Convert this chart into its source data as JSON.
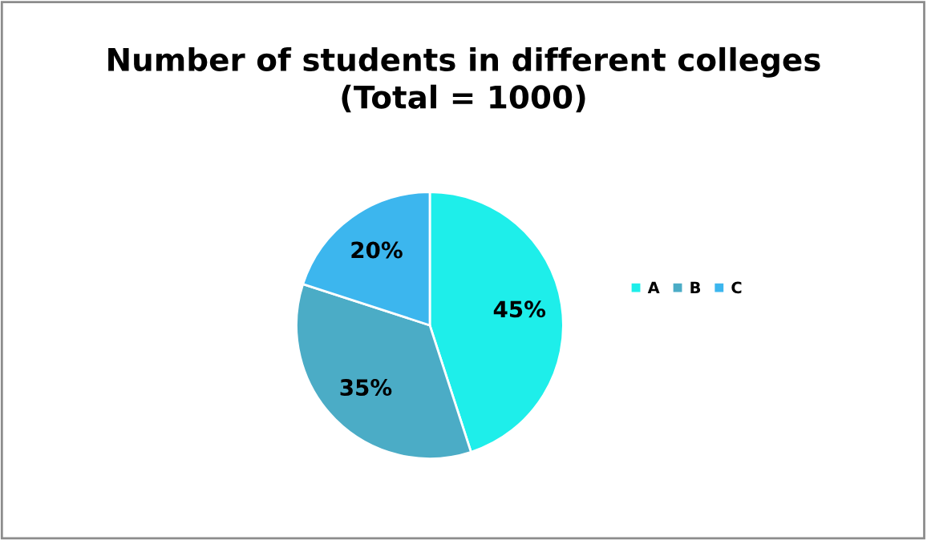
{
  "chart_data": {
    "type": "pie",
    "title": "Number of students in different colleges\n(Total = 1000)",
    "categories": [
      "A",
      "B",
      "C"
    ],
    "values": [
      45,
      35,
      20
    ],
    "colors": [
      "#1eeeea",
      "#4bacc6",
      "#3cb6ee"
    ],
    "value_labels": [
      "45%",
      "35%",
      "20%"
    ],
    "legend": "right"
  }
}
